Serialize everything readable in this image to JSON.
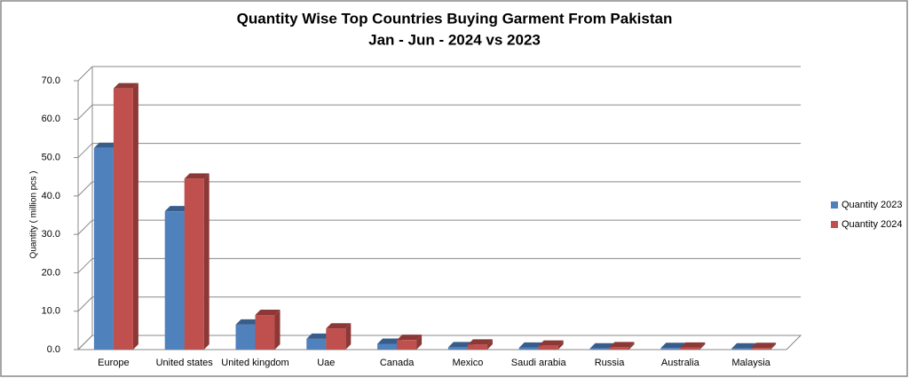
{
  "chart_data": {
    "type": "bar3d",
    "title": "Quantity Wise Top Countries Buying Garment From Pakistan",
    "subtitle": "Jan - Jun - 2024 vs 2023",
    "y_label": "Quantity ( million pcs )",
    "categories": [
      "Europe",
      "United states",
      "United kingdom",
      "Uae",
      "Canada",
      "Mexico",
      "Saudi arabia",
      "Russia",
      "Australia",
      "Malaysia"
    ],
    "series": [
      {
        "name": "Quantity 2023",
        "color": "#4f81bd",
        "side": "#385d8a",
        "values": [
          52.5,
          36.0,
          6.5,
          2.8,
          1.5,
          0.6,
          0.5,
          0.3,
          0.4,
          0.3
        ]
      },
      {
        "name": "Quantity 2024",
        "color": "#c0504d",
        "side": "#8c3836",
        "values": [
          68.0,
          44.5,
          9.0,
          5.5,
          2.5,
          1.3,
          1.0,
          0.6,
          0.5,
          0.4
        ]
      }
    ],
    "ylim": [
      0,
      70
    ],
    "yticks": [
      {
        "value": 0,
        "label": "0.0"
      },
      {
        "value": 10,
        "label": "10.0"
      },
      {
        "value": 20,
        "label": "20.0"
      },
      {
        "value": 30,
        "label": "30.0"
      },
      {
        "value": 40,
        "label": "40.0"
      },
      {
        "value": 50,
        "label": "50.0"
      },
      {
        "value": 60,
        "label": "60.0"
      },
      {
        "value": 70,
        "label": "70.0"
      }
    ],
    "grid": true,
    "legend": "right"
  }
}
